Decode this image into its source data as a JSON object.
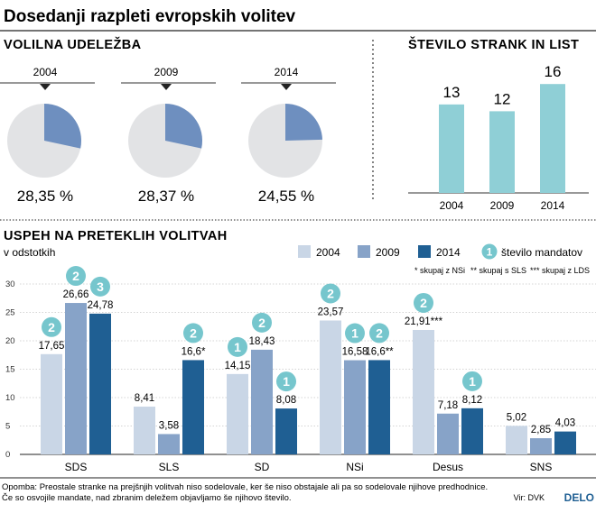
{
  "title": "Dosedanji razpleti evropskih volitev",
  "turnout": {
    "heading": "VOLILNA UDELEŽBA",
    "items": [
      {
        "year": "2004",
        "value": 28.35,
        "label": "28,35 %"
      },
      {
        "year": "2009",
        "value": 28.37,
        "label": "28,37 %"
      },
      {
        "year": "2014",
        "value": 24.55,
        "label": "24,55 %"
      }
    ]
  },
  "lists": {
    "heading": "ŠTEVILO STRANK IN LIST",
    "items": [
      {
        "year": "2004",
        "value": 13
      },
      {
        "year": "2009",
        "value": 12
      },
      {
        "year": "2014",
        "value": 16
      }
    ]
  },
  "success": {
    "heading": "USPEH NA PRETEKLIH VOLITVAH",
    "subheading": "v odstotkih",
    "legend": {
      "s2004": "2004",
      "s2009": "2009",
      "s2014": "2014",
      "mandates": "število mandatov",
      "mandate_badge": "1"
    },
    "footnotes": {
      "nsi": "* skupaj z NSi",
      "sls": "** skupaj s SLS",
      "lds": "*** skupaj z LDS"
    }
  },
  "chart_data": {
    "type": "bar",
    "categories": [
      "SDS",
      "SLS",
      "SD",
      "NSi",
      "Desus",
      "SNS"
    ],
    "series": [
      {
        "name": "2004",
        "values": [
          17.65,
          8.41,
          14.15,
          23.57,
          21.91,
          5.02
        ],
        "labels": [
          "17,65",
          "8,41",
          "14,15",
          "23,57",
          "21,91***",
          "5,02"
        ],
        "mandates": [
          2,
          null,
          1,
          2,
          2,
          null
        ]
      },
      {
        "name": "2009",
        "values": [
          26.66,
          3.58,
          18.43,
          16.58,
          7.18,
          2.85
        ],
        "labels": [
          "26,66",
          "3,58",
          "18,43",
          "16,58",
          "7,18",
          "2,85"
        ],
        "mandates": [
          2,
          null,
          2,
          1,
          null,
          null
        ]
      },
      {
        "name": "2014",
        "values": [
          24.78,
          16.6,
          8.08,
          16.6,
          8.12,
          4.03
        ],
        "labels": [
          "24,78",
          "16,6*",
          "8,08",
          "16,6**",
          "8,12",
          "4,03"
        ],
        "mandates": [
          3,
          2,
          1,
          2,
          1,
          null
        ]
      }
    ],
    "ylim": [
      0,
      30
    ],
    "yticks": [
      "0",
      "5",
      "10",
      "15",
      "20",
      "25",
      "30"
    ],
    "grid": true
  },
  "colors": {
    "s2004": "#c9d6e6",
    "s2009": "#87a3c8",
    "s2014": "#1f5f93",
    "badge": "#76c6cd",
    "teal_bar": "#8fcfd6",
    "pie_slice": "#6e8fbf",
    "pie_base": "#e2e3e5"
  },
  "footer": {
    "note_line1": "Opomba: Preostale stranke na prejšnjih volitvah niso sodelovale, ker še niso obstajale ali pa so sodelovale njihove predhodnice.",
    "note_line2": "Če so osvojile mandate, nad zbranim deležem objavljamo še njihovo število.",
    "source": "Vir: DVK",
    "brand": "DELO"
  }
}
